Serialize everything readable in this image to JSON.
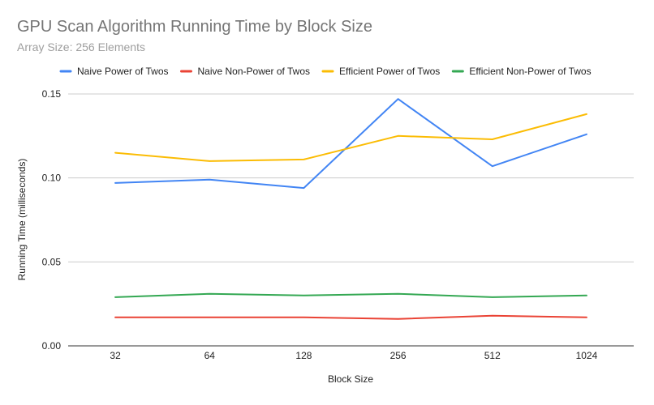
{
  "chart_data": {
    "type": "line",
    "title": "GPU Scan Algorithm Running Time by Block Size",
    "subtitle": "Array Size: 256 Elements",
    "xlabel": "Block Size",
    "ylabel": "Running Time (milliseconds)",
    "categories": [
      "32",
      "64",
      "128",
      "256",
      "512",
      "1024"
    ],
    "y_ticks": [
      "0.00",
      "0.05",
      "0.10",
      "0.15"
    ],
    "ylim": [
      0,
      0.15
    ],
    "grid": true,
    "legend_position": "top",
    "series": [
      {
        "name": "Naive Power of Twos",
        "color": "#4285F4",
        "values": [
          0.097,
          0.099,
          0.094,
          0.147,
          0.107,
          0.126
        ]
      },
      {
        "name": "Naive Non-Power of Twos",
        "color": "#EA4335",
        "values": [
          0.017,
          0.017,
          0.017,
          0.016,
          0.018,
          0.017
        ]
      },
      {
        "name": "Efficient Power of Twos",
        "color": "#FBBC04",
        "values": [
          0.115,
          0.11,
          0.111,
          0.125,
          0.123,
          0.138
        ]
      },
      {
        "name": "Efficient Non-Power of Twos",
        "color": "#34A853",
        "values": [
          0.029,
          0.031,
          0.03,
          0.031,
          0.029,
          0.03
        ]
      }
    ]
  }
}
